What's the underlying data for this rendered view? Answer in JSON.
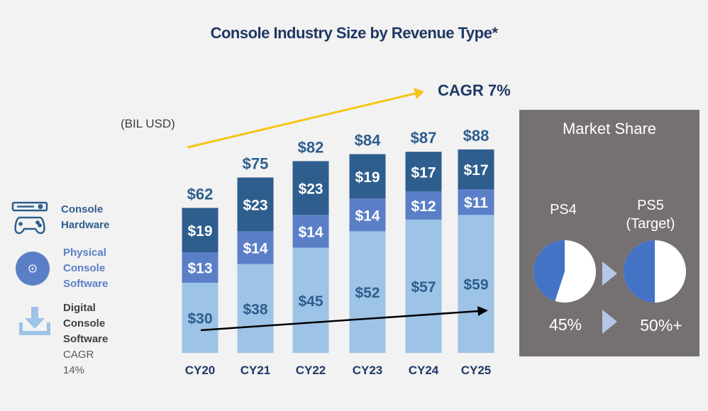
{
  "title": "Console Industry Size by Revenue Type*",
  "cagr_label": "CAGR 7%",
  "unit_label": "(BIL USD)",
  "legend": {
    "hardware": {
      "label_line1": "Console",
      "label_line2": "Hardware",
      "icon": "console-controller-icon",
      "color": "#2e5e8e"
    },
    "physical": {
      "label_line1": "Physical Console",
      "label_line2": "Software",
      "icon": "disc-icon",
      "color": "#5b7fc7"
    },
    "digital": {
      "label_line1": "Digital Console",
      "label_line2": "Software",
      "sub": "CAGR 14%",
      "icon": "download-icon",
      "color": "#9dc3e6"
    }
  },
  "colors": {
    "hardware": "#2e5e8e",
    "physical": "#5b7fc7",
    "digital": "#9dc3e6",
    "title": "#1f3864",
    "label_on_light": "#2e5e8e",
    "arrow_top": "#f5c518",
    "arrow_bottom": "#000000"
  },
  "chart_data": {
    "type": "bar",
    "stacked": true,
    "categories": [
      "CY20",
      "CY21",
      "CY22",
      "CY23",
      "CY24",
      "CY25"
    ],
    "totals": [
      62,
      75,
      82,
      84,
      87,
      88
    ],
    "total_labels": [
      "$62",
      "$75",
      "$82",
      "$84",
      "$87",
      "$88"
    ],
    "series": [
      {
        "key": "digital",
        "values": [
          30,
          38,
          45,
          52,
          57,
          59
        ],
        "labels": [
          "$30",
          "$38",
          "$45",
          "$52",
          "$57",
          "$59"
        ]
      },
      {
        "key": "physical",
        "values": [
          13,
          14,
          14,
          14,
          12,
          11
        ],
        "labels": [
          "$13",
          "$14",
          "$14",
          "$14",
          "$12",
          "$11"
        ]
      },
      {
        "key": "hardware",
        "values": [
          19,
          23,
          23,
          19,
          17,
          17
        ],
        "labels": [
          "$19",
          "$23",
          "$23",
          "$19",
          "$17",
          "$17"
        ]
      }
    ],
    "ylim": [
      0,
      100
    ]
  },
  "market_share": {
    "title": "Market Share",
    "left": {
      "name": "PS4",
      "value_label": "45%",
      "share": 0.45
    },
    "right": {
      "name_line1": "PS5",
      "name_line2": "(Target)",
      "value_label": "50%+",
      "share": 0.5
    },
    "pie_fill": "#4472c4",
    "pie_rest": "#ffffff",
    "chevron_color": "#b4c7e7"
  }
}
